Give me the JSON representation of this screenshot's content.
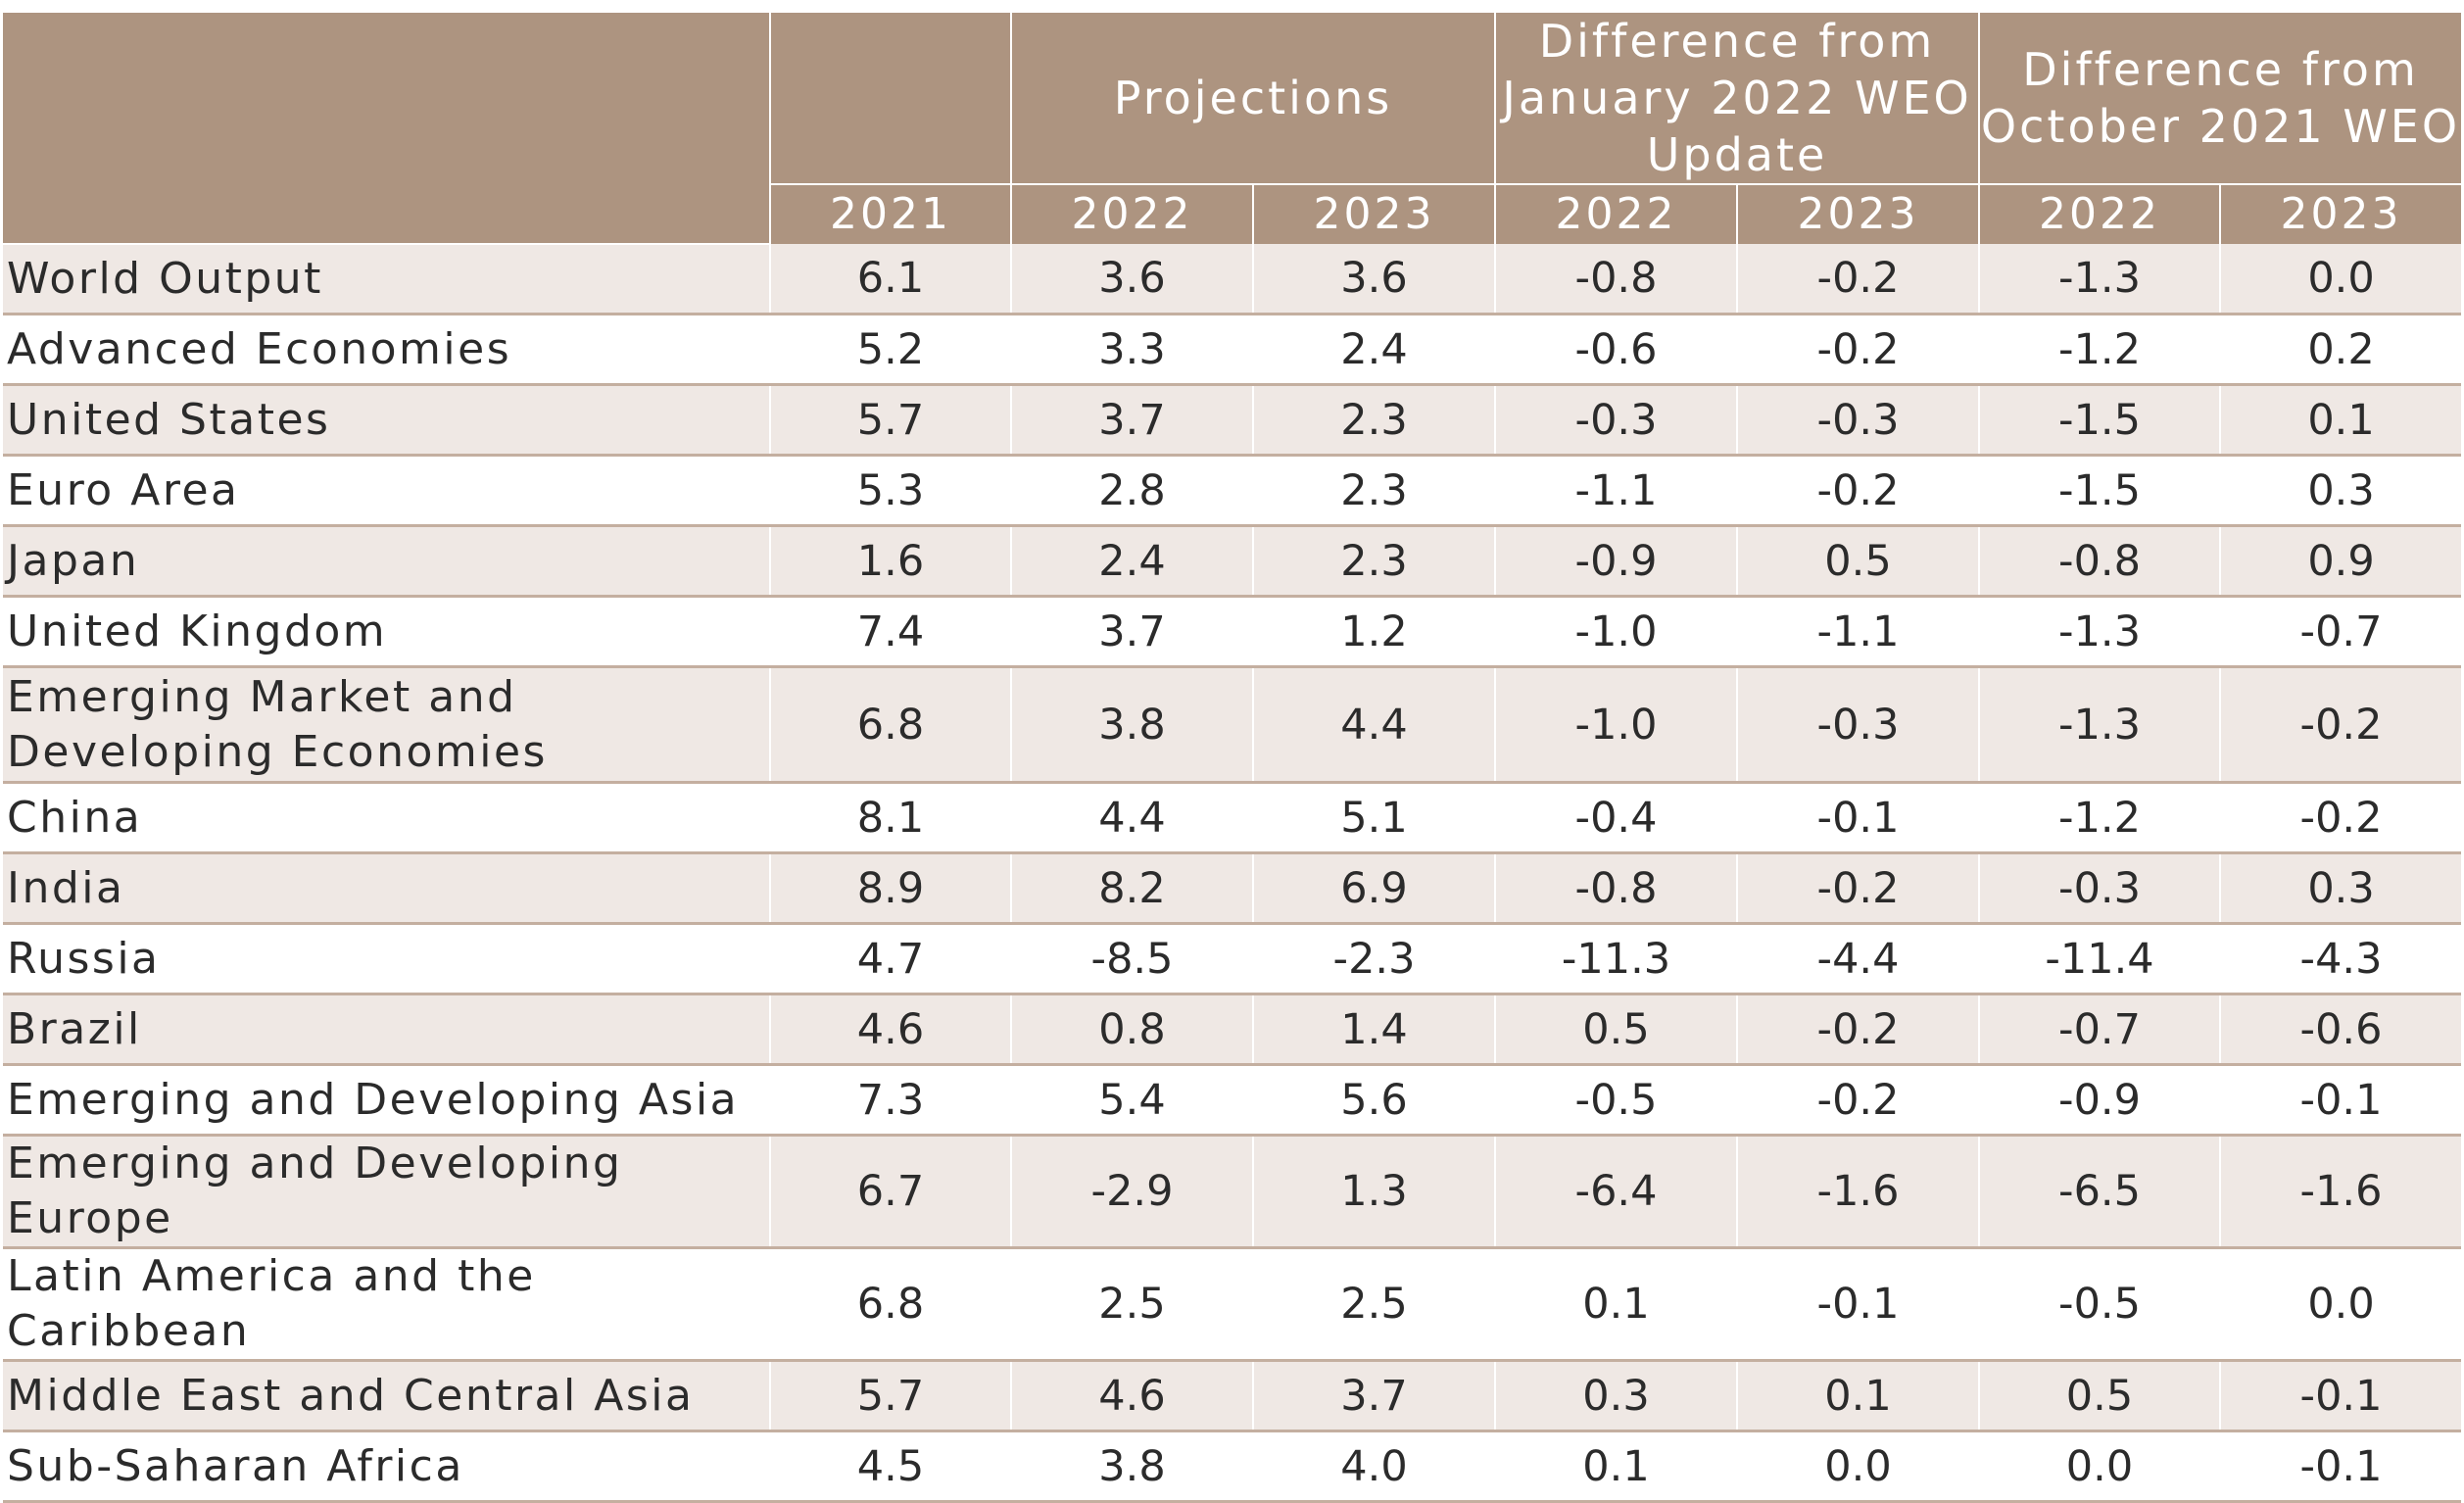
{
  "table": {
    "groups": {
      "projections": "Projections",
      "diff_jan": "Difference from January 2022 WEO Update",
      "diff_oct": "Difference from October 2021 WEO"
    },
    "years": [
      "2021",
      "2022",
      "2023",
      "2022",
      "2023",
      "2022",
      "2023"
    ],
    "rows": [
      {
        "label": "World Output",
        "values": [
          "6.1",
          "3.6",
          "3.6",
          "-0.8",
          "-0.2",
          "-1.3",
          "0.0"
        ]
      },
      {
        "label": "Advanced Economies",
        "values": [
          "5.2",
          "3.3",
          "2.4",
          "-0.6",
          "-0.2",
          "-1.2",
          "0.2"
        ]
      },
      {
        "label": "United States",
        "values": [
          "5.7",
          "3.7",
          "2.3",
          "-0.3",
          "-0.3",
          "-1.5",
          "0.1"
        ]
      },
      {
        "label": "Euro Area",
        "values": [
          "5.3",
          "2.8",
          "2.3",
          "-1.1",
          "-0.2",
          "-1.5",
          "0.3"
        ]
      },
      {
        "label": "Japan",
        "values": [
          "1.6",
          "2.4",
          "2.3",
          "-0.9",
          "0.5",
          "-0.8",
          "0.9"
        ]
      },
      {
        "label": "United Kingdom",
        "values": [
          "7.4",
          "3.7",
          "1.2",
          "-1.0",
          "-1.1",
          "-1.3",
          "-0.7"
        ]
      },
      {
        "label": "Emerging Market and Developing Economies",
        "values": [
          "6.8",
          "3.8",
          "4.4",
          "-1.0",
          "-0.3",
          "-1.3",
          "-0.2"
        ]
      },
      {
        "label": "China",
        "values": [
          "8.1",
          "4.4",
          "5.1",
          "-0.4",
          "-0.1",
          "-1.2",
          "-0.2"
        ]
      },
      {
        "label": "India",
        "values": [
          "8.9",
          "8.2",
          "6.9",
          "-0.8",
          "-0.2",
          "-0.3",
          "0.3"
        ]
      },
      {
        "label": "Russia",
        "values": [
          "4.7",
          "-8.5",
          "-2.3",
          "-11.3",
          "-4.4",
          "-11.4",
          "-4.3"
        ]
      },
      {
        "label": "Brazil",
        "values": [
          "4.6",
          "0.8",
          "1.4",
          "0.5",
          "-0.2",
          "-0.7",
          "-0.6"
        ]
      },
      {
        "label": "Emerging and Developing Asia",
        "values": [
          "7.3",
          "5.4",
          "5.6",
          "-0.5",
          "-0.2",
          "-0.9",
          "-0.1"
        ]
      },
      {
        "label": "Emerging and Developing Europe",
        "values": [
          "6.7",
          "-2.9",
          "1.3",
          "-6.4",
          "-1.6",
          "-6.5",
          "-1.6"
        ]
      },
      {
        "label": "Latin America and the Caribbean",
        "values": [
          "6.8",
          "2.5",
          "2.5",
          "0.1",
          "-0.1",
          "-0.5",
          "0.0"
        ]
      },
      {
        "label": "Middle East and Central Asia",
        "values": [
          "5.7",
          "4.6",
          "3.7",
          "0.3",
          "0.1",
          "0.5",
          "-0.1"
        ]
      },
      {
        "label": "Sub-Saharan Africa",
        "values": [
          "4.5",
          "3.8",
          "4.0",
          "0.1",
          "0.0",
          "0.0",
          "-0.1"
        ]
      }
    ]
  },
  "colors": {
    "header_bg": "#ad9480",
    "shaded_row": "#efe8e4",
    "row_rule": "#c4afa0"
  }
}
